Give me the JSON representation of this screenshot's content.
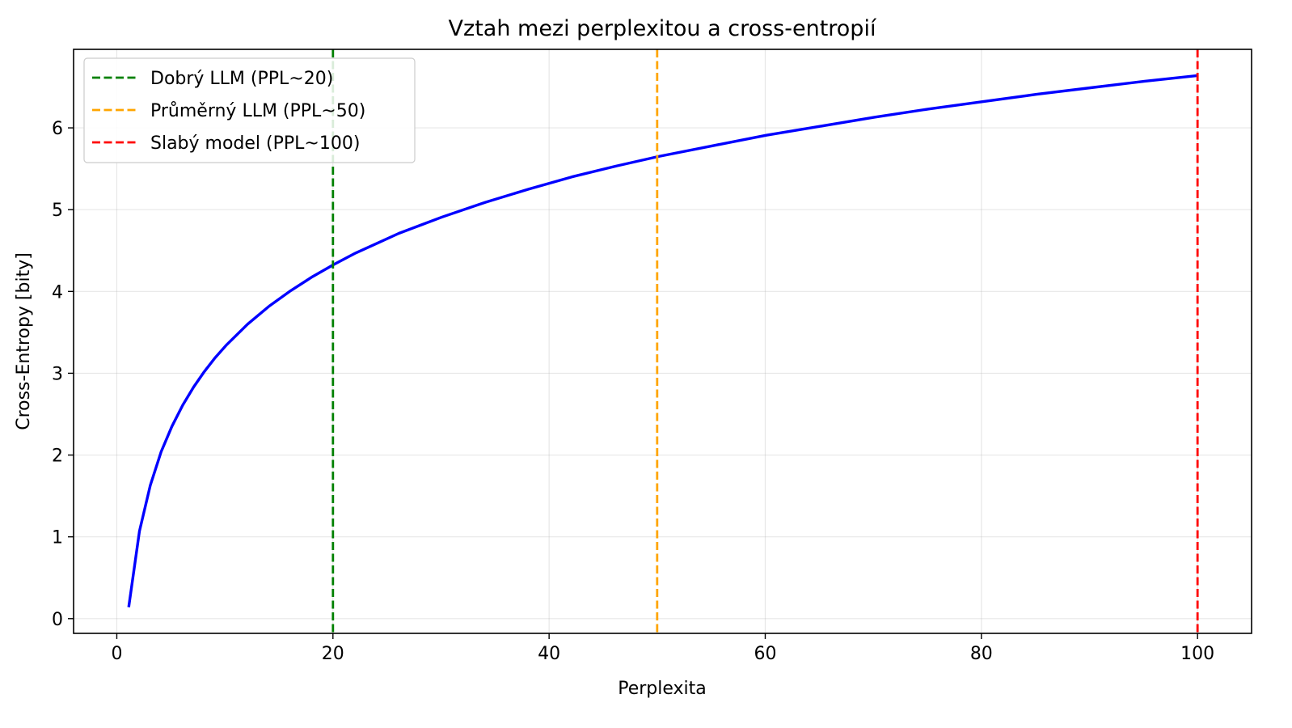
{
  "chart_data": {
    "type": "line",
    "title": "Vztah mezi perplexitou a cross-entropií",
    "xlabel": "Perplexita",
    "ylabel": "Cross-Entropy [bity]",
    "xlim": [
      -4,
      105
    ],
    "ylim": [
      -0.18,
      6.96
    ],
    "xticks": [
      0,
      20,
      40,
      60,
      80,
      100
    ],
    "yticks": [
      0,
      1,
      2,
      3,
      4,
      5,
      6
    ],
    "grid": true,
    "legend_position": "top-left",
    "series": [
      {
        "color": "#0000ff",
        "x": [
          1.1,
          2.1,
          3.1,
          4.1,
          5.1,
          6.1,
          7.1,
          8.1,
          9.1,
          10.1,
          12.1,
          14.1,
          16.1,
          18.1,
          20.1,
          22.1,
          24.1,
          26.1,
          28.1,
          30.1,
          34.1,
          38.1,
          42.1,
          46.1,
          50.1,
          55.1,
          60.1,
          65.1,
          70.1,
          75.1,
          80.1,
          85.1,
          90.1,
          95.1,
          100.0
        ],
        "y": [
          0.14,
          1.07,
          1.63,
          2.04,
          2.35,
          2.61,
          2.83,
          3.02,
          3.19,
          3.34,
          3.6,
          3.82,
          4.01,
          4.18,
          4.33,
          4.47,
          4.59,
          4.71,
          4.81,
          4.91,
          5.09,
          5.25,
          5.4,
          5.53,
          5.65,
          5.78,
          5.91,
          6.02,
          6.13,
          6.23,
          6.32,
          6.41,
          6.49,
          6.57,
          6.64
        ]
      }
    ],
    "reference_lines": [
      {
        "x": 20,
        "color": "#008000",
        "label": "Dobrý LLM (PPL~20)"
      },
      {
        "x": 50,
        "color": "#ffa500",
        "label": "Průměrný LLM (PPL~50)"
      },
      {
        "x": 100,
        "color": "#ff0000",
        "label": "Slabý model (PPL~100)"
      }
    ]
  }
}
